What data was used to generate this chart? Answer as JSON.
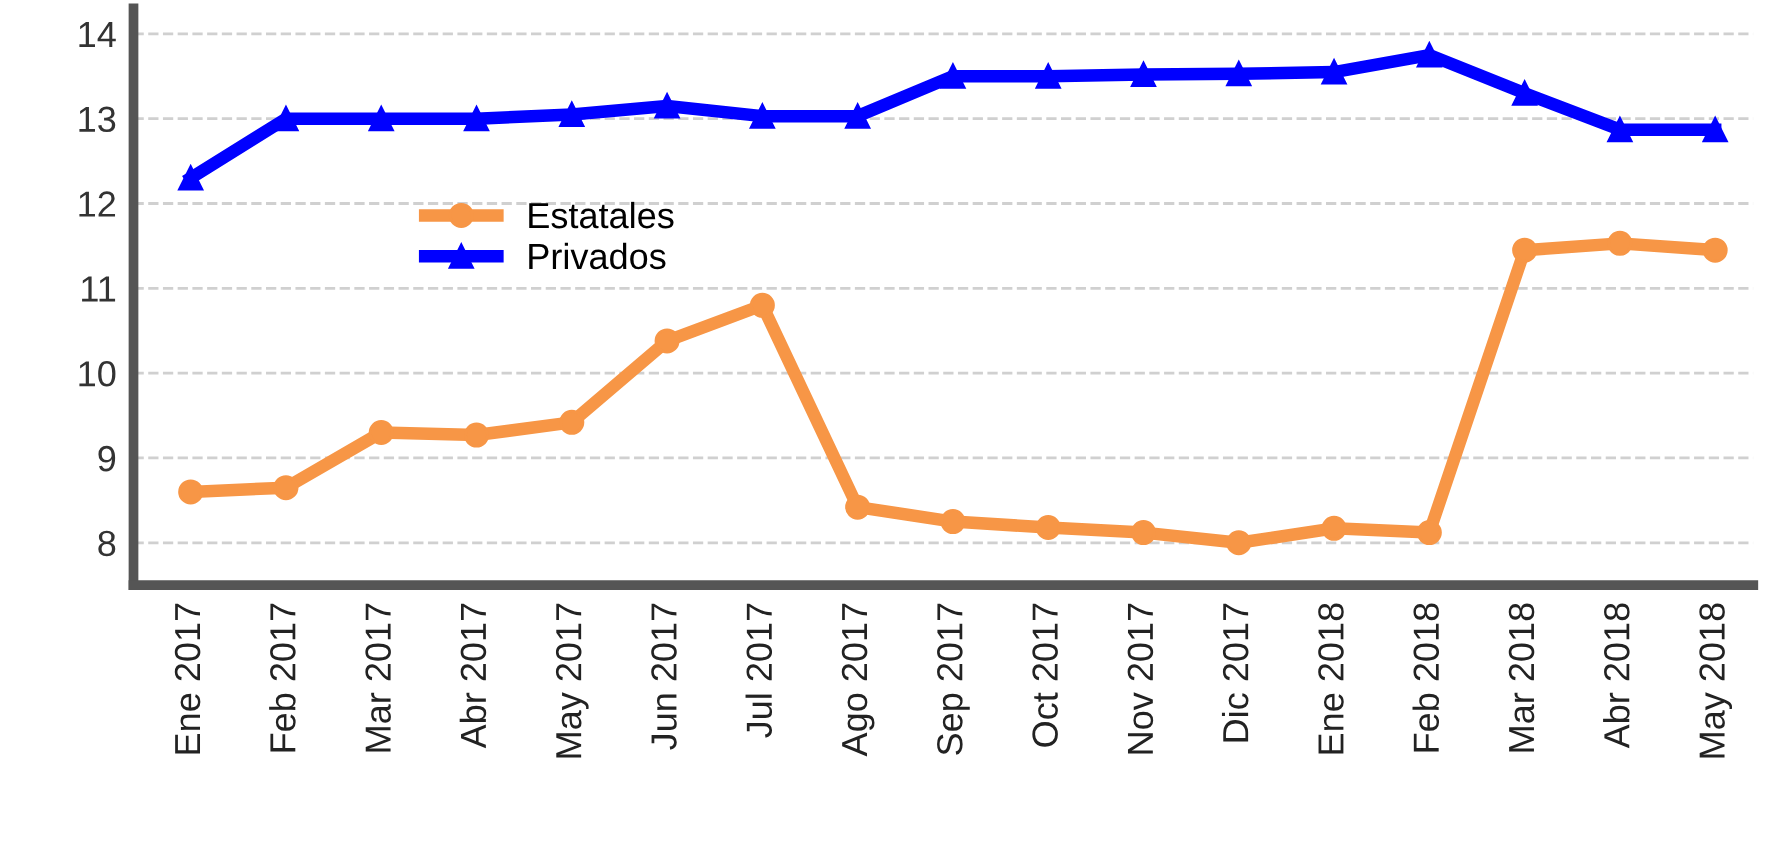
{
  "chart_data": {
    "type": "line",
    "categories": [
      "Ene 2017",
      "Feb 2017",
      "Mar 2017",
      "Abr 2017",
      "May 2017",
      "Jun 2017",
      "Jul 2017",
      "Ago 2017",
      "Sep 2017",
      "Oct 2017",
      "Nov 2017",
      "Dic 2017",
      "Ene 2018",
      "Feb 2018",
      "Mar 2018",
      "Abr 2018",
      "May 2018"
    ],
    "series": [
      {
        "name": "Estatales",
        "color": "#f79646",
        "marker": "circle",
        "values": [
          8.6,
          8.65,
          9.3,
          9.27,
          9.42,
          10.38,
          10.8,
          8.42,
          8.25,
          8.18,
          8.12,
          8.0,
          8.17,
          8.12,
          11.45,
          11.53,
          11.45
        ]
      },
      {
        "name": "Privados",
        "color": "#0000ff",
        "marker": "triangle",
        "values": [
          12.3,
          13.0,
          13.0,
          13.0,
          13.05,
          13.15,
          13.03,
          13.03,
          13.5,
          13.5,
          13.52,
          13.53,
          13.55,
          13.75,
          13.3,
          12.87,
          12.87
        ]
      }
    ],
    "ylim": [
      7.5,
      14.3
    ],
    "yticks": [
      8,
      9,
      10,
      11,
      12,
      13,
      14
    ],
    "grid": "y",
    "legend": "center left",
    "line_style": "solid"
  }
}
